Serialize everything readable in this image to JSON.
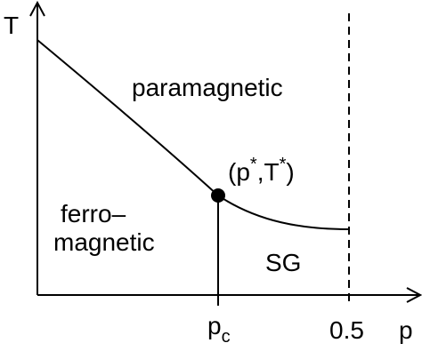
{
  "axes": {
    "y_label": "T",
    "x_label": "p"
  },
  "ticks": [
    {
      "base": "p",
      "sub": "c"
    },
    {
      "base": "0.5"
    }
  ],
  "regions": {
    "paramagnetic": "paramagnetic",
    "ferromagnetic": [
      "ferro–",
      "magnetic"
    ],
    "spin_glass": "SG"
  },
  "point": [
    "(p",
    "*",
    ",T",
    "*",
    ")"
  ]
}
